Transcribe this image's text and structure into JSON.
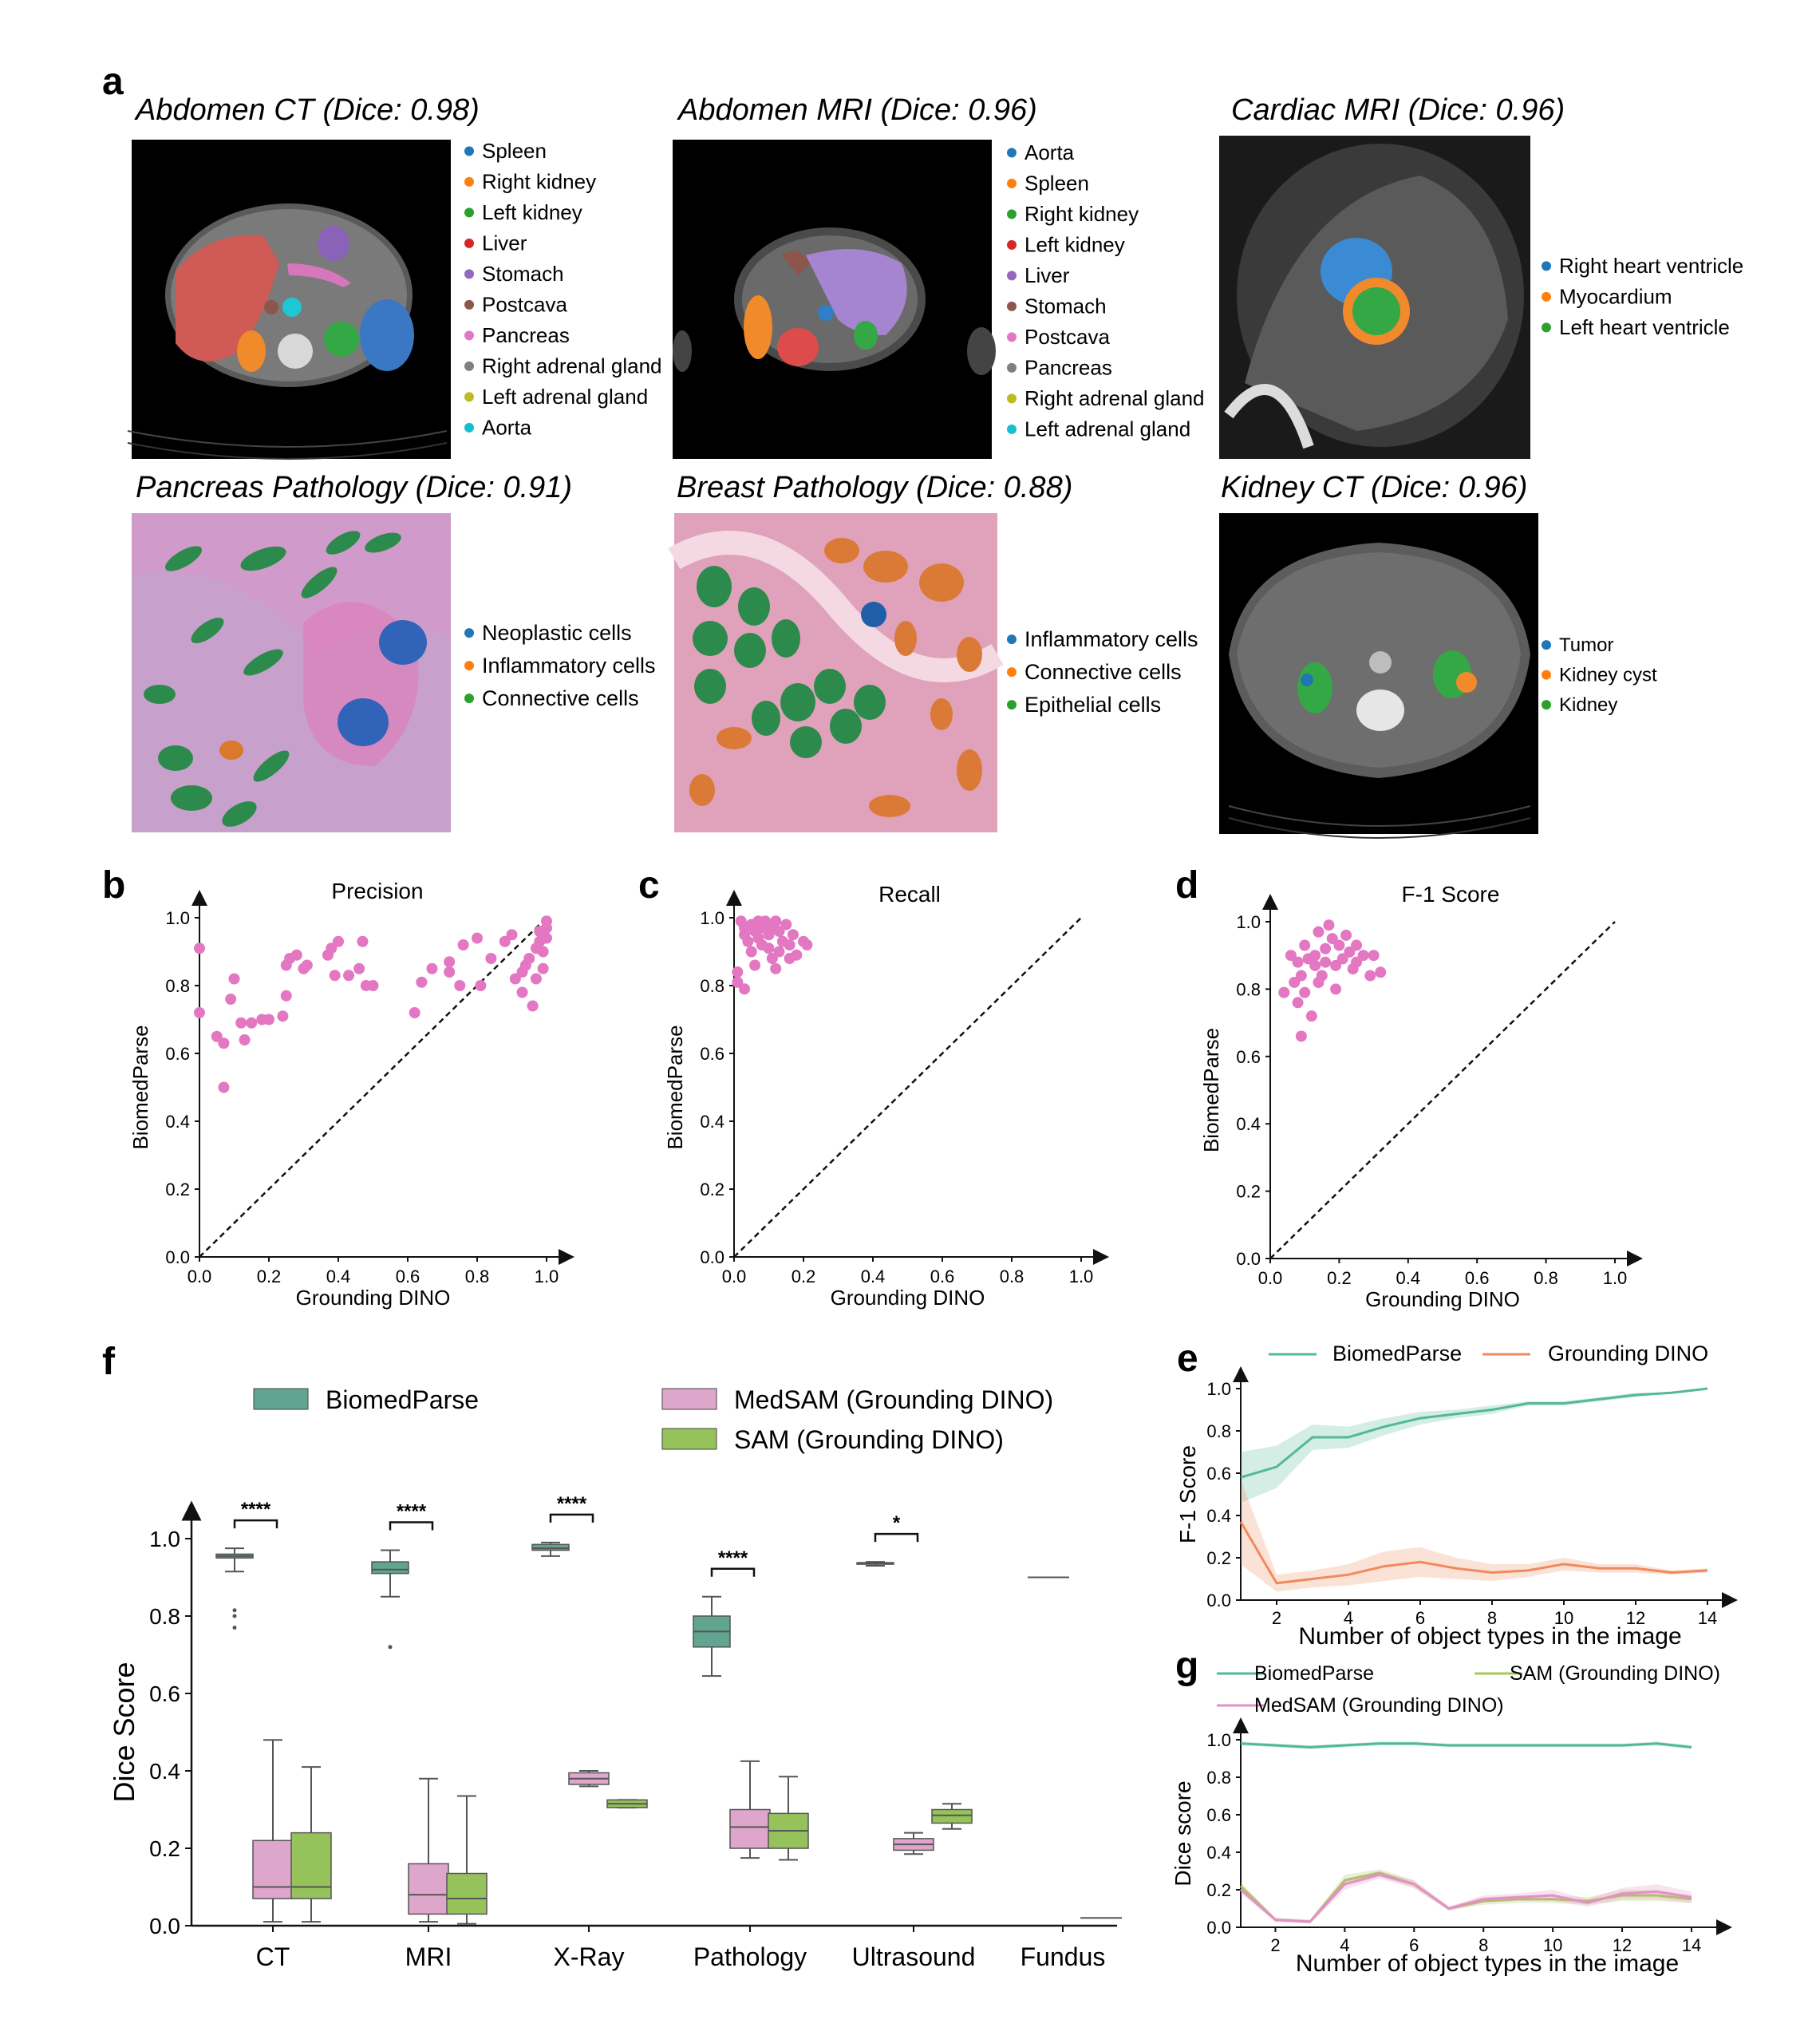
{
  "panel_a": {
    "letter": "a",
    "items": [
      {
        "title": "Abdomen CT (Dice: 0.98)",
        "legend": [
          {
            "label": "Spleen",
            "color": "#1f77b4"
          },
          {
            "label": "Right kidney",
            "color": "#ff7f0e"
          },
          {
            "label": "Left kidney",
            "color": "#2ca02c"
          },
          {
            "label": "Liver",
            "color": "#d62728"
          },
          {
            "label": "Stomach",
            "color": "#9467bd"
          },
          {
            "label": "Postcava",
            "color": "#8c564b"
          },
          {
            "label": "Pancreas",
            "color": "#e377c2"
          },
          {
            "label": "Right adrenal gland",
            "color": "#7f7f7f"
          },
          {
            "label": "Left adrenal gland",
            "color": "#bcbd22"
          },
          {
            "label": "Aorta",
            "color": "#17becf"
          }
        ]
      },
      {
        "title": "Abdomen MRI (Dice: 0.96)",
        "legend": [
          {
            "label": "Aorta",
            "color": "#1f77b4"
          },
          {
            "label": "Spleen",
            "color": "#ff7f0e"
          },
          {
            "label": "Right kidney",
            "color": "#2ca02c"
          },
          {
            "label": "Left kidney",
            "color": "#d62728"
          },
          {
            "label": "Liver",
            "color": "#9467bd"
          },
          {
            "label": "Stomach",
            "color": "#8c564b"
          },
          {
            "label": "Postcava",
            "color": "#e377c2"
          },
          {
            "label": "Pancreas",
            "color": "#7f7f7f"
          },
          {
            "label": "Right adrenal gland",
            "color": "#bcbd22"
          },
          {
            "label": "Left adrenal gland",
            "color": "#17becf"
          }
        ]
      },
      {
        "title": "Cardiac MRI (Dice: 0.96)",
        "legend": [
          {
            "label": "Right heart ventricle",
            "color": "#1f77b4"
          },
          {
            "label": "Myocardium",
            "color": "#ff7f0e"
          },
          {
            "label": "Left heart ventricle",
            "color": "#2ca02c"
          }
        ]
      },
      {
        "title": "Pancreas Pathology (Dice: 0.91)",
        "legend": [
          {
            "label": "Neoplastic cells",
            "color": "#1f77b4"
          },
          {
            "label": "Inflammatory cells",
            "color": "#ff7f0e"
          },
          {
            "label": "Connective cells",
            "color": "#2ca02c"
          }
        ]
      },
      {
        "title": "Breast Pathology (Dice: 0.88)",
        "legend": [
          {
            "label": "Inflammatory cells",
            "color": "#1f77b4"
          },
          {
            "label": "Connective cells",
            "color": "#ff7f0e"
          },
          {
            "label": "Epithelial cells",
            "color": "#2ca02c"
          }
        ]
      },
      {
        "title": "Kidney CT (Dice: 0.96)",
        "legend": [
          {
            "label": "Tumor",
            "color": "#1f77b4"
          },
          {
            "label": "Kidney cyst",
            "color": "#ff7f0e"
          },
          {
            "label": "Kidney",
            "color": "#2ca02c"
          }
        ]
      }
    ]
  },
  "chart_data": [
    {
      "id": "b",
      "letter": "b",
      "type": "scatter",
      "title": "Precision",
      "xlabel": "Grounding DINO",
      "ylabel": "BiomedParse",
      "xlim": [
        0,
        1
      ],
      "ylim": [
        0,
        1
      ],
      "ticks": [
        "0.0",
        "0.2",
        "0.4",
        "0.6",
        "0.8",
        "1.0"
      ],
      "color": "#e377c2",
      "points": [
        [
          0.0,
          0.91
        ],
        [
          0.0,
          0.72
        ],
        [
          0.05,
          0.65
        ],
        [
          0.07,
          0.63
        ],
        [
          0.07,
          0.5
        ],
        [
          0.09,
          0.76
        ],
        [
          0.1,
          0.82
        ],
        [
          0.12,
          0.69
        ],
        [
          0.13,
          0.64
        ],
        [
          0.15,
          0.69
        ],
        [
          0.18,
          0.7
        ],
        [
          0.2,
          0.7
        ],
        [
          0.24,
          0.71
        ],
        [
          0.25,
          0.77
        ],
        [
          0.25,
          0.86
        ],
        [
          0.26,
          0.88
        ],
        [
          0.28,
          0.89
        ],
        [
          0.3,
          0.85
        ],
        [
          0.31,
          0.86
        ],
        [
          0.37,
          0.89
        ],
        [
          0.38,
          0.91
        ],
        [
          0.39,
          0.83
        ],
        [
          0.4,
          0.93
        ],
        [
          0.43,
          0.83
        ],
        [
          0.46,
          0.85
        ],
        [
          0.47,
          0.93
        ],
        [
          0.48,
          0.8
        ],
        [
          0.5,
          0.8
        ],
        [
          0.62,
          0.72
        ],
        [
          0.64,
          0.81
        ],
        [
          0.67,
          0.85
        ],
        [
          0.72,
          0.87
        ],
        [
          0.72,
          0.84
        ],
        [
          0.75,
          0.8
        ],
        [
          0.76,
          0.92
        ],
        [
          0.8,
          0.94
        ],
        [
          0.81,
          0.8
        ],
        [
          0.84,
          0.88
        ],
        [
          0.88,
          0.93
        ],
        [
          0.9,
          0.95
        ],
        [
          0.91,
          0.82
        ],
        [
          0.93,
          0.78
        ],
        [
          0.93,
          0.84
        ],
        [
          0.94,
          0.86
        ],
        [
          0.95,
          0.88
        ],
        [
          0.96,
          0.74
        ],
        [
          0.97,
          0.82
        ],
        [
          0.97,
          0.91
        ],
        [
          0.98,
          0.93
        ],
        [
          0.98,
          0.96
        ],
        [
          0.99,
          0.9
        ],
        [
          0.99,
          0.85
        ],
        [
          1.0,
          0.97
        ],
        [
          1.0,
          0.94
        ],
        [
          1.0,
          0.99
        ]
      ]
    },
    {
      "id": "c",
      "letter": "c",
      "type": "scatter",
      "title": "Recall",
      "xlabel": "Grounding DINO",
      "ylabel": "BiomedParse",
      "xlim": [
        0,
        1
      ],
      "ylim": [
        0,
        1
      ],
      "ticks": [
        "0.0",
        "0.2",
        "0.4",
        "0.6",
        "0.8",
        "1.0"
      ],
      "color": "#e377c2",
      "points": [
        [
          0.01,
          0.84
        ],
        [
          0.01,
          0.81
        ],
        [
          0.02,
          0.99
        ],
        [
          0.03,
          0.97
        ],
        [
          0.03,
          0.95
        ],
        [
          0.04,
          0.93
        ],
        [
          0.05,
          0.98
        ],
        [
          0.05,
          0.9
        ],
        [
          0.06,
          0.96
        ],
        [
          0.07,
          0.99
        ],
        [
          0.07,
          0.94
        ],
        [
          0.08,
          0.92
        ],
        [
          0.08,
          0.97
        ],
        [
          0.09,
          0.99
        ],
        [
          0.1,
          0.95
        ],
        [
          0.1,
          0.91
        ],
        [
          0.11,
          0.88
        ],
        [
          0.11,
          0.97
        ],
        [
          0.12,
          0.99
        ],
        [
          0.13,
          0.96
        ],
        [
          0.13,
          0.9
        ],
        [
          0.14,
          0.93
        ],
        [
          0.15,
          0.98
        ],
        [
          0.16,
          0.92
        ],
        [
          0.17,
          0.95
        ],
        [
          0.18,
          0.89
        ],
        [
          0.2,
          0.93
        ],
        [
          0.21,
          0.92
        ],
        [
          0.06,
          0.86
        ],
        [
          0.12,
          0.85
        ],
        [
          0.03,
          0.79
        ],
        [
          0.16,
          0.88
        ]
      ]
    },
    {
      "id": "d",
      "letter": "d",
      "type": "scatter",
      "title": "F-1 Score",
      "xlabel": "Grounding DINO",
      "ylabel": "BiomedParse",
      "xlim": [
        0,
        1
      ],
      "ylim": [
        0,
        1
      ],
      "ticks": [
        "0.0",
        "0.2",
        "0.4",
        "0.6",
        "0.8",
        "1.0"
      ],
      "color": "#e377c2",
      "points": [
        [
          0.04,
          0.79
        ],
        [
          0.06,
          0.9
        ],
        [
          0.07,
          0.82
        ],
        [
          0.08,
          0.88
        ],
        [
          0.08,
          0.76
        ],
        [
          0.09,
          0.66
        ],
        [
          0.09,
          0.84
        ],
        [
          0.1,
          0.93
        ],
        [
          0.1,
          0.79
        ],
        [
          0.11,
          0.89
        ],
        [
          0.12,
          0.72
        ],
        [
          0.13,
          0.87
        ],
        [
          0.13,
          0.9
        ],
        [
          0.14,
          0.97
        ],
        [
          0.14,
          0.82
        ],
        [
          0.15,
          0.84
        ],
        [
          0.16,
          0.92
        ],
        [
          0.16,
          0.88
        ],
        [
          0.17,
          0.99
        ],
        [
          0.18,
          0.95
        ],
        [
          0.19,
          0.87
        ],
        [
          0.2,
          0.93
        ],
        [
          0.21,
          0.89
        ],
        [
          0.22,
          0.96
        ],
        [
          0.23,
          0.91
        ],
        [
          0.24,
          0.86
        ],
        [
          0.25,
          0.88
        ],
        [
          0.27,
          0.9
        ],
        [
          0.29,
          0.84
        ],
        [
          0.3,
          0.9
        ],
        [
          0.32,
          0.85
        ],
        [
          0.19,
          0.8
        ],
        [
          0.25,
          0.93
        ]
      ]
    },
    {
      "id": "e",
      "letter": "e",
      "type": "line",
      "xlabel": "Number of object types in the image",
      "ylabel": "F-1 Score",
      "xlim": [
        1,
        14
      ],
      "ylim": [
        0,
        1
      ],
      "xticks": [
        "2",
        "4",
        "6",
        "8",
        "10",
        "12",
        "14"
      ],
      "yticks": [
        "0.0",
        "0.2",
        "0.4",
        "0.6",
        "0.8",
        "1.0"
      ],
      "x": [
        1,
        2,
        3,
        4,
        5,
        6,
        7,
        8,
        9,
        10,
        11,
        12,
        13,
        14
      ],
      "series": [
        {
          "name": "BiomedParse",
          "color": "#52b996",
          "values": [
            0.58,
            0.63,
            0.77,
            0.77,
            0.82,
            0.86,
            0.88,
            0.9,
            0.93,
            0.93,
            0.95,
            0.97,
            0.98,
            1.0
          ],
          "band": [
            0.12,
            0.1,
            0.06,
            0.05,
            0.04,
            0.03,
            0.02,
            0.02,
            0.01,
            0.01,
            0.01,
            0.01,
            0.0,
            0.0
          ]
        },
        {
          "name": "Grounding DINO",
          "color": "#f08a5d",
          "values": [
            0.37,
            0.08,
            0.1,
            0.12,
            0.16,
            0.18,
            0.15,
            0.13,
            0.14,
            0.17,
            0.15,
            0.15,
            0.13,
            0.14
          ],
          "band": [
            0.2,
            0.04,
            0.04,
            0.05,
            0.07,
            0.07,
            0.05,
            0.04,
            0.03,
            0.03,
            0.02,
            0.02,
            0.01,
            0.01
          ]
        }
      ]
    },
    {
      "id": "g",
      "letter": "g",
      "type": "line",
      "xlabel": "Number of object types in the image",
      "ylabel": "Dice score",
      "xlim": [
        1,
        14.3
      ],
      "ylim": [
        0,
        1
      ],
      "xticks": [
        "2",
        "4",
        "6",
        "8",
        "10",
        "12",
        "14"
      ],
      "yticks": [
        "0.0",
        "0.2",
        "0.4",
        "0.6",
        "0.8",
        "1.0"
      ],
      "x": [
        1,
        2,
        3,
        4,
        5,
        6,
        7,
        8,
        9,
        10,
        11,
        12,
        13,
        14
      ],
      "series": [
        {
          "name": "BiomedParse",
          "color": "#52b996",
          "values": [
            0.98,
            0.97,
            0.96,
            0.97,
            0.98,
            0.98,
            0.97,
            0.97,
            0.97,
            0.97,
            0.97,
            0.97,
            0.98,
            0.96
          ],
          "band": [
            0.01,
            0.01,
            0.01,
            0.01,
            0.01,
            0.01,
            0.01,
            0.01,
            0.01,
            0.01,
            0.01,
            0.01,
            0.01,
            0.01
          ]
        },
        {
          "name": "SAM (Grounding DINO)",
          "color": "#a8c95a",
          "values": [
            0.22,
            0.04,
            0.03,
            0.25,
            0.29,
            0.23,
            0.1,
            0.14,
            0.15,
            0.15,
            0.14,
            0.17,
            0.17,
            0.15
          ],
          "band": [
            0.02,
            0.01,
            0.01,
            0.03,
            0.02,
            0.02,
            0.01,
            0.02,
            0.02,
            0.02,
            0.02,
            0.03,
            0.03,
            0.02
          ]
        },
        {
          "name": "MedSAM (Grounding DINO)",
          "color": "#e58fc7",
          "values": [
            0.2,
            0.04,
            0.03,
            0.23,
            0.28,
            0.23,
            0.1,
            0.15,
            0.16,
            0.17,
            0.13,
            0.18,
            0.19,
            0.16
          ],
          "band": [
            0.02,
            0.01,
            0.01,
            0.03,
            0.02,
            0.02,
            0.01,
            0.02,
            0.02,
            0.03,
            0.02,
            0.03,
            0.04,
            0.03
          ]
        }
      ]
    },
    {
      "id": "f",
      "letter": "f",
      "type": "box",
      "ylabel": "Dice Score",
      "ylim": [
        0,
        1
      ],
      "yticks": [
        "0.0",
        "0.2",
        "0.4",
        "0.6",
        "0.8",
        "1.0"
      ],
      "categories": [
        "CT",
        "MRI",
        "X-Ray",
        "Pathology",
        "Ultrasound",
        "Fundus"
      ],
      "series": [
        {
          "name": "BiomedParse",
          "color": "#61a48f"
        },
        {
          "name": "MedSAM (Grounding DINO)",
          "color": "#dea6cb"
        },
        {
          "name": "SAM (Grounding DINO)",
          "color": "#95c25a"
        }
      ],
      "boxes": [
        [
          [
            0.915,
            0.95,
            0.955,
            0.96,
            0.975
          ],
          [
            0.01,
            0.07,
            0.1,
            0.22,
            0.48
          ],
          [
            0.01,
            0.07,
            0.1,
            0.24,
            0.41
          ]
        ],
        [
          [
            0.85,
            0.91,
            0.92,
            0.94,
            0.97
          ],
          [
            0.01,
            0.03,
            0.08,
            0.16,
            0.38
          ],
          [
            0.005,
            0.03,
            0.07,
            0.135,
            0.335
          ]
        ],
        [
          [
            0.955,
            0.97,
            0.975,
            0.985,
            0.99
          ],
          [
            0.36,
            0.365,
            0.38,
            0.395,
            0.4
          ],
          [
            0.305,
            0.305,
            0.315,
            0.325,
            0.325
          ]
        ],
        [
          [
            0.645,
            0.72,
            0.76,
            0.8,
            0.85
          ],
          [
            0.175,
            0.2,
            0.255,
            0.3,
            0.425
          ],
          [
            0.17,
            0.2,
            0.245,
            0.29,
            0.385
          ]
        ],
        [
          [
            0.93,
            0.935,
            0.935,
            0.938,
            0.94
          ],
          [
            0.185,
            0.195,
            0.21,
            0.225,
            0.24
          ],
          [
            0.25,
            0.265,
            0.285,
            0.3,
            0.315
          ]
        ],
        [
          [
            0.9,
            0.9,
            0.9,
            0.9,
            0.9
          ],
          null,
          [
            0.02,
            0.02,
            0.02,
            0.02,
            0.02
          ]
        ]
      ],
      "outliers": [
        [
          0.8,
          0.77,
          0.815
        ],
        [
          0.72
        ],
        [],
        [],
        [],
        []
      ],
      "significance": [
        "****",
        "****",
        "****",
        "****",
        "*",
        ""
      ]
    }
  ]
}
